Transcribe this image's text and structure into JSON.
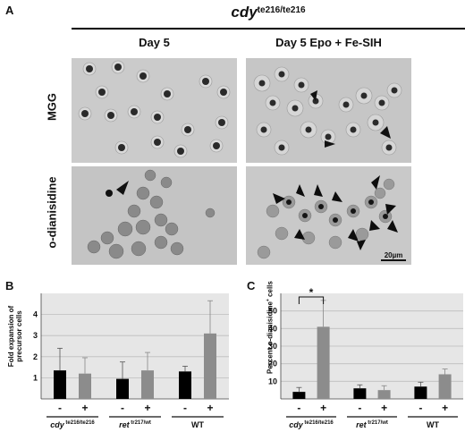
{
  "figure": {
    "panel_a": "A",
    "panel_b": "B",
    "panel_c": "C",
    "title_main": "cdy",
    "title_sup": "te216/te216",
    "col_day5": "Day 5",
    "col_epo": "Day 5 Epo + Fe-SIH",
    "row_mgg": "MGG",
    "row_odia": "o-dianisidine",
    "scale_bar": "20µm"
  },
  "colors": {
    "plot_bg": "#e6e6e6",
    "grid": "#bdbdbd",
    "bar_minus": "#000000",
    "bar_plus": "#8c8c8c",
    "micro_bg_light": "#c8c8c8",
    "micro_bg_dark": "#bdbdbd",
    "cell_dark": "#2a2a2a",
    "cell_mid": "#777777"
  },
  "chart_data": [
    {
      "panel": "B",
      "type": "bar",
      "ylabel_line1": "Fold expansion of",
      "ylabel_line2": "precursor cells",
      "ylim": [
        0,
        5
      ],
      "yticks": [
        1,
        2,
        3,
        4
      ],
      "grid": true,
      "treatments": [
        "-",
        "+"
      ],
      "groups": [
        {
          "name_main": "cdy",
          "name_sup": "te216/te216",
          "italic": true,
          "values": [
            1.35,
            1.2
          ],
          "errors": [
            1.05,
            0.75
          ]
        },
        {
          "name_main": "ret",
          "name_sup": "tr217/wt",
          "italic": true,
          "values": [
            0.95,
            1.35
          ],
          "errors": [
            0.8,
            0.85
          ]
        },
        {
          "name_main": "WT",
          "name_sup": "",
          "italic": false,
          "values": [
            1.3,
            3.1
          ],
          "errors": [
            0.25,
            1.55
          ]
        }
      ]
    },
    {
      "panel": "C",
      "type": "bar",
      "ylabel_main": "Percent o-dianisidine",
      "ylabel_sup": "+",
      "ylabel_tail": " cells",
      "ylim": [
        0,
        60
      ],
      "yticks": [
        10,
        20,
        30,
        40,
        50
      ],
      "grid": true,
      "significance": "*",
      "treatments": [
        "-",
        "+"
      ],
      "groups": [
        {
          "name_main": "cdy",
          "name_sup": "te216/te216",
          "italic": true,
          "values": [
            4,
            41
          ],
          "errors": [
            2.5,
            15
          ]
        },
        {
          "name_main": "ret",
          "name_sup": "tr217/wt",
          "italic": true,
          "values": [
            6,
            5
          ],
          "errors": [
            2,
            2.5
          ]
        },
        {
          "name_main": "WT",
          "name_sup": "",
          "italic": false,
          "values": [
            7,
            14
          ],
          "errors": [
            2.5,
            3
          ]
        }
      ]
    }
  ]
}
